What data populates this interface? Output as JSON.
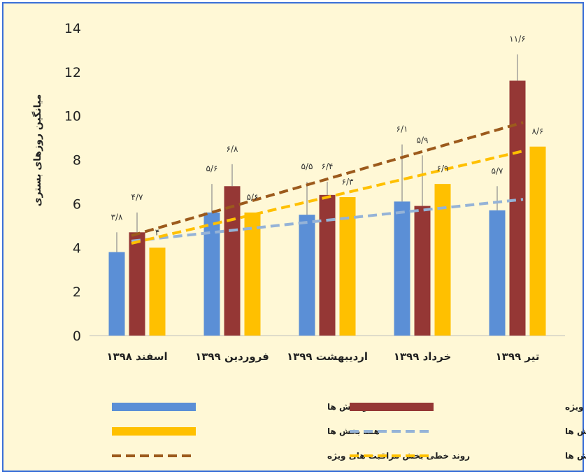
{
  "chart_data": {
    "type": "bar",
    "ylabel": "میانگین روزهای بستری",
    "ylim": [
      0,
      14
    ],
    "yticks": [
      "0",
      "2",
      "4",
      "6",
      "8",
      "10",
      "12",
      "14"
    ],
    "grid": false,
    "legend_position": "bottom",
    "categories": [
      "اسفند ۱۳۹۸",
      "فروردین ۱۳۹۹",
      "اردیبهشت ۱۳۹۹",
      "خرداد ۱۳۹۹",
      "تیر ۱۳۹۹"
    ],
    "series": [
      {
        "name": "سایر بخش ها",
        "color": "#5b8fd6",
        "values": [
          3.8,
          5.6,
          5.5,
          6.1,
          5.7
        ],
        "labels": [
          "۳/۸",
          "۵/۶",
          "۵/۵",
          "۶/۱",
          "۵/۷"
        ],
        "error_upper": [
          4.7,
          6.9,
          7.0,
          8.7,
          6.8
        ]
      },
      {
        "name": "بخش مراقبت های ویژه",
        "color": "#953735",
        "values": [
          4.7,
          6.8,
          6.4,
          5.9,
          11.6
        ],
        "labels": [
          "۴/۷",
          "۶/۸",
          "۶/۴",
          "۵/۹",
          "۱۱/۶"
        ],
        "error_upper": [
          5.6,
          7.8,
          7.0,
          8.2,
          12.8
        ]
      },
      {
        "name": "همه بخش ها",
        "color": "#ffc000",
        "values": [
          4.0,
          5.6,
          6.3,
          6.9,
          8.6
        ],
        "labels": [
          "۴",
          "۵/۶",
          "۶/۳",
          "۶/۹",
          "۸/۶"
        ]
      }
    ],
    "trendlines": [
      {
        "name": "روند خطی سایر بخش ها",
        "color": "#95b3d7",
        "start": 4.3,
        "end": 6.2
      },
      {
        "name": "روند خطی بخش مراقبت های ویژه",
        "color": "#9c5a1c",
        "start": 4.55,
        "end": 9.7
      },
      {
        "name": "روند خطی همه بخش ها",
        "color": "#ffc000",
        "start": 4.2,
        "end": 8.4
      }
    ]
  },
  "legend": [
    {
      "label": "سایر بخش ها",
      "kind": "bar",
      "color": "#5b8fd6"
    },
    {
      "label": "بخش مراقبت های ویژه",
      "kind": "bar",
      "color": "#953735"
    },
    {
      "label": "همه بخش ها",
      "kind": "bar",
      "color": "#ffc000"
    },
    {
      "label": "روند خطی سایر بخش ها",
      "kind": "line",
      "color": "#95b3d7"
    },
    {
      "label": "روند خطی بخش مراقبت های ویژه",
      "kind": "line",
      "color": "#9c5a1c"
    },
    {
      "label": "روند خطی همه بخش ها",
      "kind": "line",
      "color": "#ffc000"
    }
  ]
}
